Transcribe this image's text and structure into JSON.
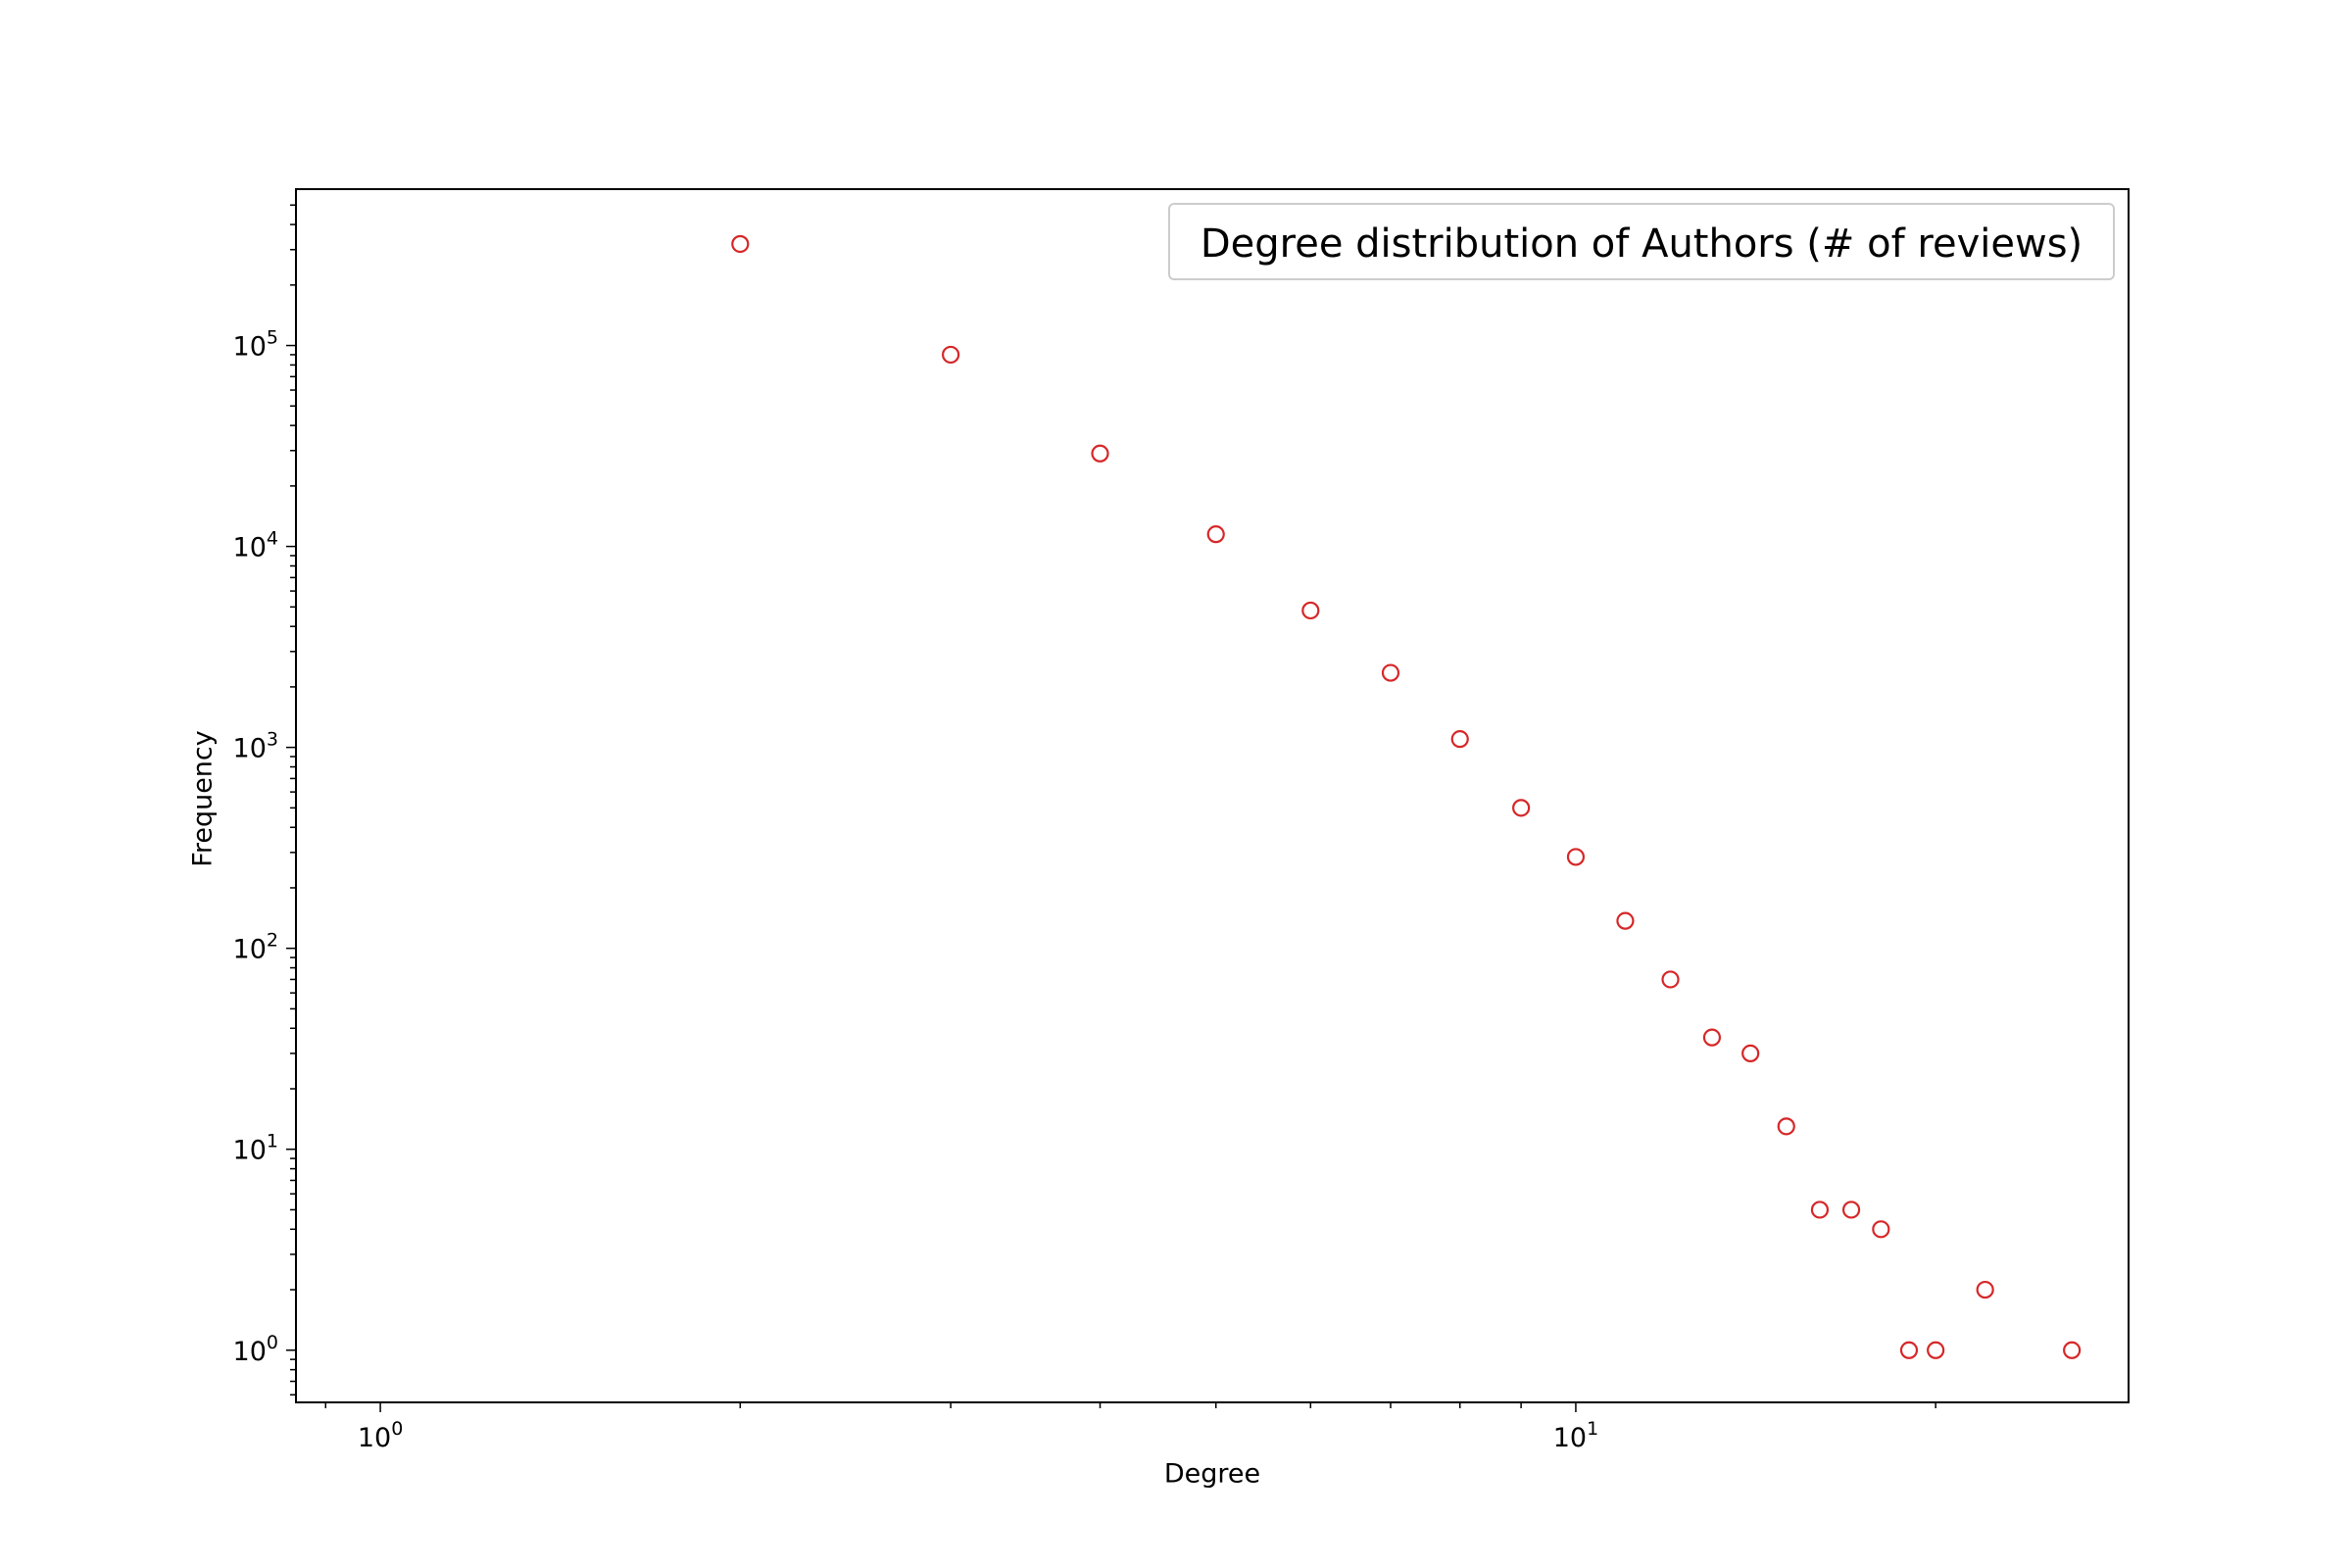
{
  "chart_data": {
    "type": "scatter",
    "title": "",
    "legend": {
      "entry": "Degree distribution of Authors (# of reviews)",
      "placement": "top-right"
    },
    "xlabel": "Degree",
    "ylabel": "Frequency",
    "xscale": "log",
    "yscale": "log",
    "xlim": [
      0.85,
      29
    ],
    "ylim": [
      0.55,
      600000
    ],
    "x_ticks": [
      {
        "value": 1,
        "base": "10",
        "exp": "0"
      },
      {
        "value": 10,
        "base": "10",
        "exp": "1"
      }
    ],
    "y_ticks": [
      {
        "value": 1,
        "base": "10",
        "exp": "0"
      },
      {
        "value": 10,
        "base": "10",
        "exp": "1"
      },
      {
        "value": 100,
        "base": "10",
        "exp": "2"
      },
      {
        "value": 1000,
        "base": "10",
        "exp": "3"
      },
      {
        "value": 10000,
        "base": "10",
        "exp": "4"
      },
      {
        "value": 100000,
        "base": "10",
        "exp": "5"
      }
    ],
    "grid": false,
    "marker": {
      "shape": "hollow-circle",
      "color": "#d62728"
    },
    "series": [
      {
        "name": "Degree distribution of Authors (# of reviews)",
        "points": [
          {
            "x": 2,
            "y": 320000
          },
          {
            "x": 3,
            "y": 90000
          },
          {
            "x": 4,
            "y": 29000
          },
          {
            "x": 5,
            "y": 11500
          },
          {
            "x": 6,
            "y": 4800
          },
          {
            "x": 7,
            "y": 2350
          },
          {
            "x": 8,
            "y": 1100
          },
          {
            "x": 9,
            "y": 500
          },
          {
            "x": 10,
            "y": 285
          },
          {
            "x": 11,
            "y": 137
          },
          {
            "x": 12,
            "y": 70
          },
          {
            "x": 13,
            "y": 36
          },
          {
            "x": 14,
            "y": 30
          },
          {
            "x": 15,
            "y": 13
          },
          {
            "x": 16,
            "y": 5
          },
          {
            "x": 17,
            "y": 5
          },
          {
            "x": 18,
            "y": 4
          },
          {
            "x": 19,
            "y": 1
          },
          {
            "x": 20,
            "y": 1
          },
          {
            "x": 22,
            "y": 2
          },
          {
            "x": 26,
            "y": 1
          }
        ]
      }
    ]
  }
}
